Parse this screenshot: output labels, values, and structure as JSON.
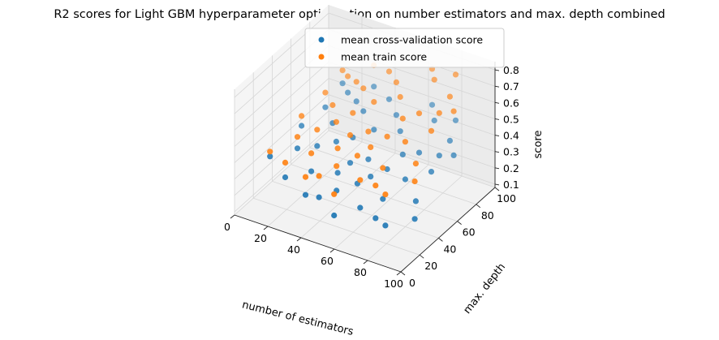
{
  "chart_data": {
    "type": "scatter3d",
    "title": "R2 scores for Light GBM hyperparameter optimization on number estimators and max. depth combined",
    "xlabel": "number of estimators",
    "ylabel": "max. depth",
    "zlabel": "score",
    "xlim": [
      0,
      100
    ],
    "ylim": [
      0,
      100
    ],
    "zlim": [
      0.08,
      0.85
    ],
    "xticks": [
      0,
      20,
      40,
      60,
      80,
      100
    ],
    "yticks": [
      0,
      20,
      40,
      60,
      80,
      100
    ],
    "zticks": [
      0.1,
      0.2,
      0.3,
      0.4,
      0.5,
      0.6,
      0.7,
      0.8
    ],
    "legend_position": "top-center",
    "grid": true,
    "series": [
      {
        "name": "mean cross-validation score",
        "color": "#1f77b4",
        "points": [
          [
            10,
            20,
            0.37
          ],
          [
            12,
            50,
            0.41
          ],
          [
            15,
            70,
            0.43
          ],
          [
            18,
            35,
            0.37
          ],
          [
            20,
            85,
            0.46
          ],
          [
            22,
            15,
            0.31
          ],
          [
            25,
            60,
            0.42
          ],
          [
            27,
            40,
            0.39
          ],
          [
            30,
            95,
            0.48
          ],
          [
            32,
            25,
            0.33
          ],
          [
            35,
            75,
            0.45
          ],
          [
            37,
            10,
            0.28
          ],
          [
            40,
            55,
            0.41
          ],
          [
            42,
            90,
            0.47
          ],
          [
            45,
            30,
            0.34
          ],
          [
            47,
            65,
            0.43
          ],
          [
            50,
            20,
            0.3
          ],
          [
            52,
            80,
            0.46
          ],
          [
            55,
            45,
            0.38
          ],
          [
            57,
            5,
            0.25
          ],
          [
            60,
            70,
            0.44
          ],
          [
            62,
            35,
            0.35
          ],
          [
            65,
            95,
            0.49
          ],
          [
            67,
            15,
            0.28
          ],
          [
            70,
            55,
            0.41
          ],
          [
            72,
            85,
            0.47
          ],
          [
            75,
            25,
            0.31
          ],
          [
            77,
            60,
            0.42
          ],
          [
            80,
            40,
            0.37
          ],
          [
            82,
            90,
            0.48
          ],
          [
            85,
            10,
            0.26
          ],
          [
            87,
            75,
            0.45
          ],
          [
            90,
            50,
            0.4
          ],
          [
            92,
            30,
            0.33
          ],
          [
            95,
            65,
            0.44
          ],
          [
            97,
            20,
            0.29
          ],
          [
            14,
            90,
            0.47
          ],
          [
            28,
            80,
            0.46
          ],
          [
            44,
            12,
            0.28
          ],
          [
            58,
            28,
            0.33
          ],
          [
            68,
            42,
            0.38
          ],
          [
            78,
            12,
            0.27
          ],
          [
            88,
            62,
            0.43
          ],
          [
            34,
            48,
            0.4
          ],
          [
            48,
            38,
            0.37
          ]
        ]
      },
      {
        "name": "mean train score",
        "color": "#ff7f0e",
        "points": [
          [
            10,
            20,
            0.4
          ],
          [
            12,
            50,
            0.47
          ],
          [
            15,
            70,
            0.52
          ],
          [
            18,
            35,
            0.44
          ],
          [
            20,
            85,
            0.56
          ],
          [
            22,
            15,
            0.4
          ],
          [
            25,
            60,
            0.53
          ],
          [
            27,
            40,
            0.49
          ],
          [
            30,
            95,
            0.61
          ],
          [
            32,
            25,
            0.44
          ],
          [
            35,
            75,
            0.59
          ],
          [
            37,
            10,
            0.39
          ],
          [
            40,
            55,
            0.56
          ],
          [
            42,
            90,
            0.64
          ],
          [
            45,
            30,
            0.49
          ],
          [
            47,
            65,
            0.6
          ],
          [
            50,
            20,
            0.45
          ],
          [
            52,
            80,
            0.66
          ],
          [
            55,
            45,
            0.55
          ],
          [
            57,
            5,
            0.38
          ],
          [
            60,
            70,
            0.65
          ],
          [
            62,
            35,
            0.53
          ],
          [
            65,
            95,
            0.71
          ],
          [
            67,
            15,
            0.45
          ],
          [
            70,
            55,
            0.63
          ],
          [
            72,
            85,
            0.72
          ],
          [
            75,
            25,
            0.5
          ],
          [
            77,
            60,
            0.66
          ],
          [
            80,
            40,
            0.6
          ],
          [
            82,
            90,
            0.76
          ],
          [
            85,
            10,
            0.45
          ],
          [
            87,
            75,
            0.72
          ],
          [
            90,
            50,
            0.65
          ],
          [
            92,
            30,
            0.56
          ],
          [
            95,
            65,
            0.71
          ],
          [
            97,
            20,
            0.52
          ],
          [
            14,
            90,
            0.55
          ],
          [
            28,
            80,
            0.58
          ],
          [
            44,
            12,
            0.41
          ],
          [
            58,
            28,
            0.5
          ],
          [
            68,
            42,
            0.58
          ],
          [
            78,
            12,
            0.47
          ],
          [
            88,
            62,
            0.69
          ],
          [
            34,
            48,
            0.52
          ],
          [
            48,
            38,
            0.54
          ]
        ]
      }
    ]
  }
}
